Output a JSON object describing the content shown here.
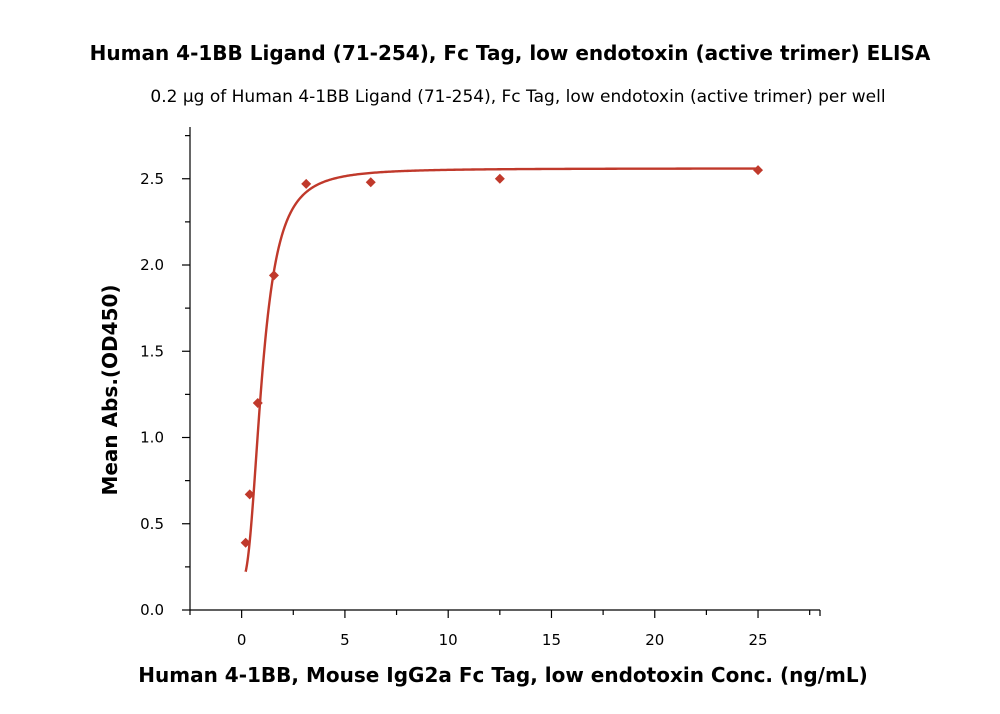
{
  "chart_data": {
    "type": "scatter",
    "title": "Human 4-1BB Ligand (71-254), Fc Tag, low endotoxin (active trimer) ELISA",
    "subtitle": "0.2 µg of Human 4-1BB Ligand (71-254), Fc Tag, low endotoxin (active trimer) per well",
    "xlabel": "Human 4-1BB, Mouse IgG2a Fc Tag, low endotoxin Conc. (ng/mL)",
    "ylabel": "Mean Abs.(OD450)",
    "xlim": [
      -2.5,
      28
    ],
    "ylim": [
      0,
      2.8
    ],
    "x_ticks": [
      0,
      5,
      10,
      15,
      20,
      25
    ],
    "y_ticks": [
      0.0,
      0.5,
      1.0,
      1.5,
      2.0,
      2.5
    ],
    "x_tick_labels": [
      "0",
      "5",
      "10",
      "15",
      "20",
      "25"
    ],
    "y_tick_labels": [
      "0.0",
      "0.5",
      "1.0",
      "1.5",
      "2.0",
      "2.5"
    ],
    "grid": false,
    "legend": "none",
    "series": [
      {
        "x": [
          0.195,
          0.391,
          0.781,
          1.563,
          3.125,
          6.25,
          12.5,
          25
        ],
        "y": [
          0.39,
          0.67,
          1.2,
          1.94,
          2.47,
          2.48,
          2.5,
          2.55
        ],
        "color": "#c0392b",
        "marker": "diamond"
      }
    ],
    "fit_curve": {
      "type": "four-parameter-logistic",
      "color": "#c0392b"
    }
  }
}
